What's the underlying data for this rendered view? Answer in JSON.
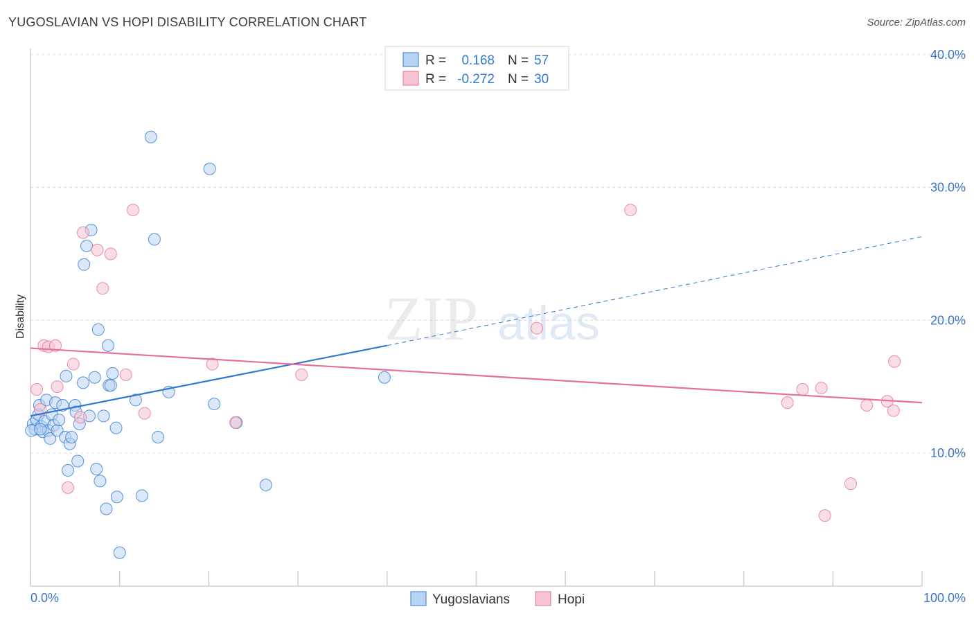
{
  "title": "YUGOSLAVIAN VS HOPI DISABILITY CORRELATION CHART",
  "source": "Source: ZipAtlas.com",
  "colors": {
    "blue": "#2f78d0",
    "blue_fill": "#b9d3f2",
    "pink": "#e5709a",
    "pink_fill": "#f6c3d2",
    "tick": "#3d74c4",
    "grid": "#d8d8d8"
  },
  "legend": {
    "r_label": "R =",
    "n_label": "N =",
    "rows": [
      {
        "r": "0.168",
        "n": "57"
      },
      {
        "r": "-0.272",
        "n": "30"
      }
    ]
  },
  "watermark": {
    "zip": "ZIP",
    "atlas": "atlas"
  },
  "chart_data": {
    "type": "scatter",
    "ylabel": "Disability",
    "x_ticks": [
      "0.0%",
      "100.0%"
    ],
    "y_ticks": [
      "10.0%",
      "20.0%",
      "30.0%",
      "40.0%"
    ],
    "xlim": [
      0,
      100
    ],
    "ylim": [
      0,
      42
    ],
    "grid": true,
    "legend_position": "top-center",
    "series": [
      {
        "name": "Yugoslavians",
        "color": "#2f78d0",
        "trend": {
          "x0": 0,
          "y0": 12.8,
          "x1": 40,
          "y1": 18.1,
          "dashed_to": 100,
          "dashed_y": 26.3
        },
        "points": [
          [
            0.3,
            12.2
          ],
          [
            0.5,
            11.8
          ],
          [
            0.7,
            12.5
          ],
          [
            0.9,
            12.9
          ],
          [
            1.0,
            13.6
          ],
          [
            1.2,
            12.0
          ],
          [
            1.4,
            11.6
          ],
          [
            1.6,
            12.4
          ],
          [
            1.8,
            14.0
          ],
          [
            2.0,
            11.7
          ],
          [
            2.2,
            11.1
          ],
          [
            2.4,
            12.9
          ],
          [
            2.6,
            12.1
          ],
          [
            2.8,
            13.8
          ],
          [
            3.0,
            11.7
          ],
          [
            3.2,
            12.5
          ],
          [
            3.6,
            13.6
          ],
          [
            3.9,
            11.2
          ],
          [
            4.0,
            15.8
          ],
          [
            4.2,
            8.7
          ],
          [
            4.4,
            10.7
          ],
          [
            4.6,
            11.2
          ],
          [
            5.0,
            13.6
          ],
          [
            5.1,
            13.1
          ],
          [
            5.3,
            9.4
          ],
          [
            5.5,
            12.2
          ],
          [
            5.9,
            15.3
          ],
          [
            6.0,
            24.2
          ],
          [
            6.3,
            25.6
          ],
          [
            6.6,
            12.8
          ],
          [
            6.8,
            26.8
          ],
          [
            7.2,
            15.7
          ],
          [
            7.4,
            8.8
          ],
          [
            7.6,
            19.3
          ],
          [
            7.8,
            7.9
          ],
          [
            8.2,
            12.8
          ],
          [
            8.5,
            5.8
          ],
          [
            8.7,
            18.1
          ],
          [
            8.8,
            15.1
          ],
          [
            9.0,
            15.1
          ],
          [
            9.2,
            16.0
          ],
          [
            9.6,
            11.9
          ],
          [
            9.7,
            6.7
          ],
          [
            10.0,
            2.5
          ],
          [
            11.8,
            14.0
          ],
          [
            12.5,
            6.8
          ],
          [
            13.5,
            33.8
          ],
          [
            13.9,
            26.1
          ],
          [
            14.3,
            11.2
          ],
          [
            15.5,
            14.6
          ],
          [
            20.1,
            31.4
          ],
          [
            20.6,
            13.7
          ],
          [
            23.1,
            12.3
          ],
          [
            26.4,
            7.6
          ],
          [
            39.7,
            15.7
          ],
          [
            0.1,
            11.7
          ],
          [
            1.1,
            11.8
          ]
        ]
      },
      {
        "name": "Hopi",
        "color": "#e5709a",
        "trend": {
          "x0": 0,
          "y0": 17.9,
          "x1": 100,
          "y1": 13.8
        },
        "points": [
          [
            0.7,
            14.8
          ],
          [
            1.1,
            13.3
          ],
          [
            1.5,
            18.1
          ],
          [
            2.0,
            18.0
          ],
          [
            2.8,
            18.1
          ],
          [
            3.0,
            15.0
          ],
          [
            4.2,
            7.4
          ],
          [
            4.8,
            16.7
          ],
          [
            5.6,
            12.7
          ],
          [
            5.9,
            26.6
          ],
          [
            7.5,
            25.3
          ],
          [
            8.1,
            22.4
          ],
          [
            9.0,
            25.0
          ],
          [
            10.7,
            15.9
          ],
          [
            11.5,
            28.3
          ],
          [
            12.8,
            13.0
          ],
          [
            20.4,
            16.7
          ],
          [
            23.0,
            12.3
          ],
          [
            30.4,
            15.9
          ],
          [
            56.8,
            19.4
          ],
          [
            67.3,
            28.3
          ],
          [
            84.9,
            13.8
          ],
          [
            86.6,
            14.8
          ],
          [
            88.7,
            14.9
          ],
          [
            89.1,
            5.3
          ],
          [
            92.0,
            7.7
          ],
          [
            93.8,
            13.6
          ],
          [
            96.1,
            13.9
          ],
          [
            96.8,
            13.2
          ],
          [
            96.9,
            16.9
          ]
        ]
      }
    ]
  }
}
